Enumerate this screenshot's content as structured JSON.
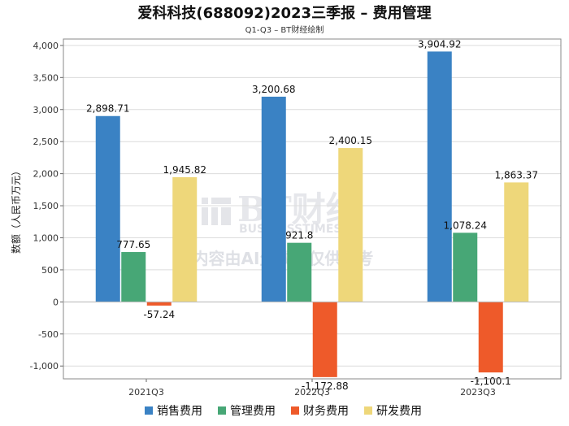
{
  "chart_data": {
    "type": "bar",
    "title": "爱科科技(688092)2023三季报 – 费用管理",
    "subtitle": "Q1-Q3 – BT财经绘制",
    "ylabel": "数额（人民币万元）",
    "xlabel": "",
    "ylim": [
      -1200,
      4100
    ],
    "yticks": [
      4000,
      3500,
      3000,
      2500,
      2000,
      1500,
      1000,
      500,
      0,
      -500,
      -1000
    ],
    "ytick_labels": [
      "4,000",
      "3,500",
      "3,000",
      "2,500",
      "2,000",
      "1,500",
      "1,000",
      "500",
      "0",
      "-500",
      "-1,000"
    ],
    "categories": [
      "2021Q3",
      "2022Q3",
      "2023Q3"
    ],
    "series": [
      {
        "name": "销售费用",
        "color": "#3a82c4",
        "values": [
          2898.71,
          3200.68,
          3904.92
        ],
        "labels": [
          "2,898.71",
          "3,200.68",
          "3,904.92"
        ]
      },
      {
        "name": "管理费用",
        "color": "#47a776",
        "values": [
          777.65,
          921.8,
          1078.24
        ],
        "labels": [
          "777.65",
          "921.8",
          "1,078.24"
        ]
      },
      {
        "name": "财务费用",
        "color": "#ee5a2a",
        "values": [
          -57.24,
          -1172.88,
          -1100.1
        ],
        "labels": [
          "-57.24",
          "-1,172.88",
          "-1,100.1"
        ]
      },
      {
        "name": "研发费用",
        "color": "#eed77a",
        "values": [
          1945.82,
          2400.15,
          1863.37
        ],
        "labels": [
          "1,945.82",
          "2,400.15",
          "1,863.37"
        ]
      }
    ],
    "legend_position": "bottom",
    "grid": true
  },
  "watermark": {
    "brand": "BT财经",
    "brand_sub": "BUSINESSTIMES",
    "notice": "内容由AI生成，仅供参考"
  }
}
